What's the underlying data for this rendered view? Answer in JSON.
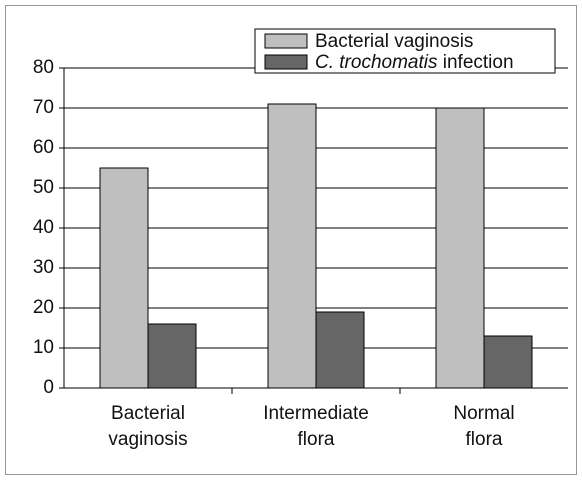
{
  "chart_data": {
    "type": "bar",
    "categories": [
      "Bacterial vaginosis",
      "Intermediate flora",
      "Normal flora"
    ],
    "series": [
      {
        "name": "Bacterial vaginosis",
        "color": "#bfbfbf",
        "values": [
          55,
          71,
          70
        ]
      },
      {
        "name": "C. trochomatis infection",
        "color": "#666666",
        "values": [
          16,
          19,
          13
        ]
      }
    ],
    "ylim": [
      0,
      80
    ],
    "yticks": [
      0,
      10,
      20,
      30,
      40,
      50,
      60,
      70,
      80
    ],
    "grid": true,
    "legend": "top-right"
  }
}
